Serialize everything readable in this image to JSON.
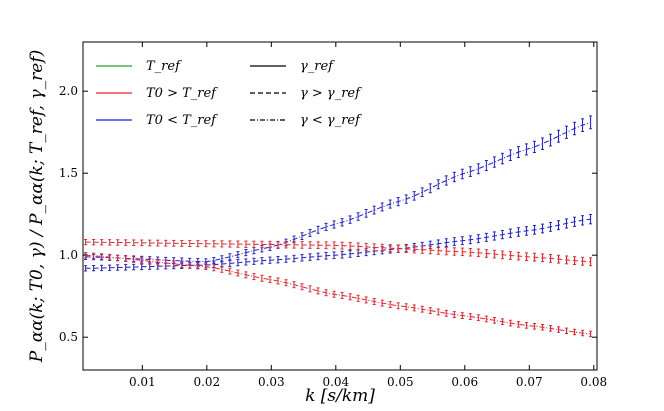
{
  "chart_data": {
    "type": "line",
    "title": "",
    "xlabel": "k [s/km]",
    "ylabel": "P_αα(k; T0, γ) / P_αα(k; T_ref, γ_ref)",
    "xlim": [
      0.0008,
      0.0805
    ],
    "ylim": [
      0.3,
      2.3
    ],
    "xticks": [
      0.01,
      0.02,
      0.03,
      0.04,
      0.05,
      0.06,
      0.07,
      0.08
    ],
    "xtick_labels": [
      "0.01",
      "0.02",
      "0.03",
      "0.04",
      "0.05",
      "0.06",
      "0.07",
      "0.08"
    ],
    "yticks": [
      0.5,
      1.0,
      1.5,
      2.0
    ],
    "ytick_labels": [
      "0.5",
      "1.0",
      "1.5",
      "2.0"
    ],
    "grid": false,
    "legend_position": "top-left",
    "legend_colors": [
      {
        "label": "T_ref",
        "color": "#2ca02c"
      },
      {
        "label": "T0 > T_ref",
        "color": "#e8262a"
      },
      {
        "label": "T0 < T_ref",
        "color": "#1f1fd6"
      }
    ],
    "legend_styles": [
      {
        "label": "γ_ref",
        "dash": "solid"
      },
      {
        "label": "γ > γ_ref",
        "dash": "dashed"
      },
      {
        "label": "γ < γ_ref",
        "dash": "dashdot"
      }
    ],
    "x_start": 0.0012,
    "x_end": 0.0795,
    "n_points": 64,
    "series": [
      {
        "name": "T0 < T_ref, γ < γ_ref",
        "color": "#1f1fd6",
        "dash": "dashdot",
        "knots_x": [
          0.0012,
          0.02,
          0.03,
          0.04,
          0.05,
          0.06,
          0.07,
          0.0795
        ],
        "knots_y": [
          0.99,
          0.96,
          1.05,
          1.19,
          1.33,
          1.5,
          1.65,
          1.81
        ]
      },
      {
        "name": "T0 < T_ref, γ > γ_ref",
        "color": "#1f1fd6",
        "dash": "dashed",
        "knots_x": [
          0.0012,
          0.02,
          0.03,
          0.04,
          0.05,
          0.06,
          0.07,
          0.0795
        ],
        "knots_y": [
          0.92,
          0.94,
          0.97,
          1.0,
          1.04,
          1.09,
          1.15,
          1.22
        ]
      },
      {
        "name": "T0 > T_ref, γ > γ_ref",
        "color": "#e8262a",
        "dash": "dashed",
        "knots_x": [
          0.0012,
          0.02,
          0.03,
          0.04,
          0.05,
          0.06,
          0.07,
          0.0795
        ],
        "knots_y": [
          1.08,
          1.07,
          1.065,
          1.06,
          1.04,
          1.02,
          0.99,
          0.96
        ]
      },
      {
        "name": "T0 > T_ref, γ < γ_ref",
        "color": "#e8262a",
        "dash": "dashdot",
        "knots_x": [
          0.0012,
          0.02,
          0.03,
          0.04,
          0.05,
          0.06,
          0.07,
          0.0795
        ],
        "knots_y": [
          1.0,
          0.93,
          0.85,
          0.76,
          0.69,
          0.63,
          0.57,
          0.52
        ]
      }
    ]
  }
}
